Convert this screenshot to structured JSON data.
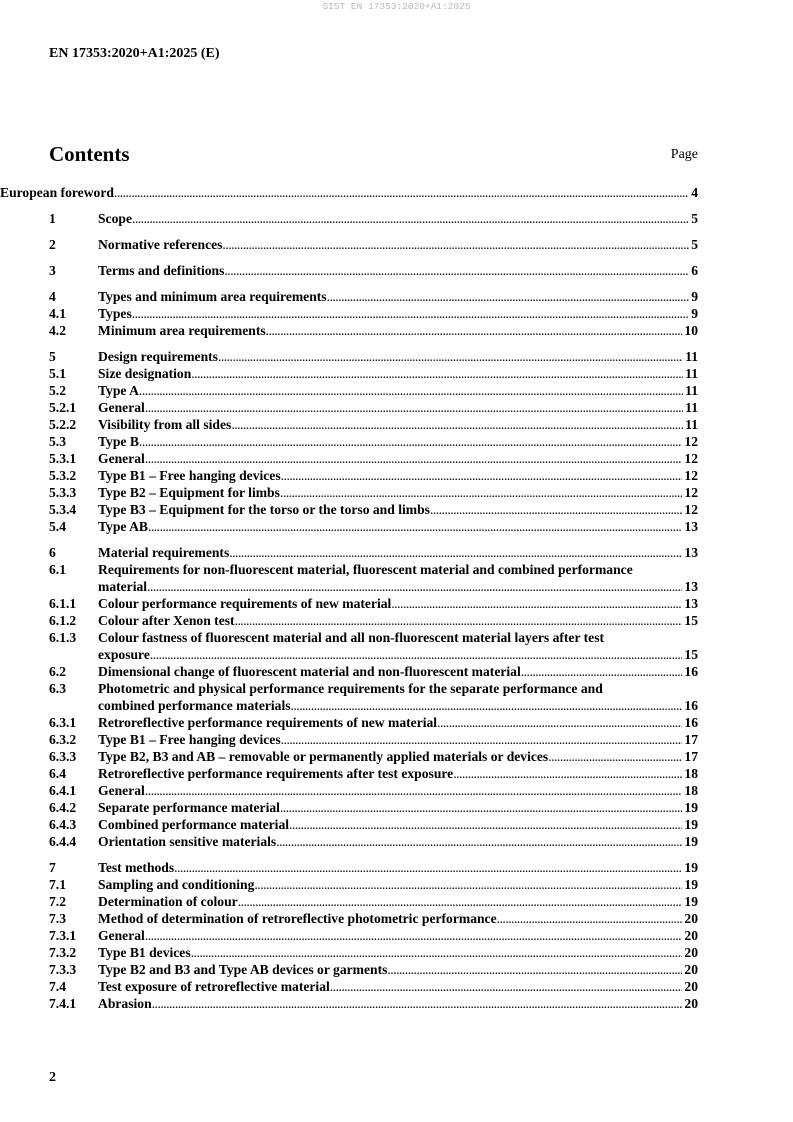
{
  "watermark": "SIST EN 17353:2020+A1:2025",
  "header": "EN 17353:2020+A1:2025 (E)",
  "contents_title": "Contents",
  "page_label": "Page",
  "entries": [
    {
      "num": "",
      "title": "European foreword",
      "page": "4",
      "gap": false
    },
    {
      "num": "1",
      "title": "Scope",
      "page": "5",
      "gap": true
    },
    {
      "num": "2",
      "title": "Normative references",
      "page": "5",
      "gap": true
    },
    {
      "num": "3",
      "title": "Terms and definitions",
      "page": "6",
      "gap": true
    },
    {
      "num": "4",
      "title": "Types and minimum area requirements",
      "page": "9",
      "gap": true
    },
    {
      "num": "4.1",
      "title": "Types",
      "page": "9",
      "gap": false
    },
    {
      "num": "4.2",
      "title": "Minimum area requirements",
      "page": "10",
      "gap": false
    },
    {
      "num": "5",
      "title": "Design requirements",
      "page": "11",
      "gap": true
    },
    {
      "num": "5.1",
      "title": "Size designation",
      "page": "11",
      "gap": false
    },
    {
      "num": "5.2",
      "title": "Type A",
      "page": "11",
      "gap": false
    },
    {
      "num": "5.2.1",
      "title": "General",
      "page": "11",
      "gap": false
    },
    {
      "num": "5.2.2",
      "title": "Visibility from all sides",
      "page": "11",
      "gap": false
    },
    {
      "num": "5.3",
      "title": "Type B",
      "page": "12",
      "gap": false
    },
    {
      "num": "5.3.1",
      "title": "General",
      "page": "12",
      "gap": false
    },
    {
      "num": "5.3.2",
      "title": "Type B1 – Free hanging devices",
      "page": "12",
      "gap": false
    },
    {
      "num": "5.3.3",
      "title": "Type B2 – Equipment for limbs",
      "page": "12",
      "gap": false
    },
    {
      "num": "5.3.4",
      "title": "Type B3 – Equipment for the torso or the torso and limbs",
      "page": "12",
      "gap": false
    },
    {
      "num": "5.4",
      "title": "Type AB",
      "page": "13",
      "gap": false
    },
    {
      "num": "6",
      "title": "Material requirements",
      "page": "13",
      "gap": true
    },
    {
      "num": "6.1",
      "title": "Requirements for non-fluorescent material, fluorescent material and combined performance material",
      "page": "13",
      "gap": false
    },
    {
      "num": "6.1.1",
      "title": "Colour performance requirements of new material",
      "page": "13",
      "gap": false
    },
    {
      "num": "6.1.2",
      "title": "Colour after Xenon test",
      "page": "15",
      "gap": false
    },
    {
      "num": "6.1.3",
      "title": "Colour fastness of fluorescent material and all non-fluorescent material layers after test exposure",
      "page": "15",
      "gap": false
    },
    {
      "num": "6.2",
      "title": "Dimensional change of fluorescent material and non-fluorescent material",
      "page": "16",
      "gap": false
    },
    {
      "num": "6.3",
      "title": "Photometric and physical performance requirements for the separate performance and combined performance materials",
      "page": "16",
      "gap": false
    },
    {
      "num": "6.3.1",
      "title": "Retroreflective performance requirements of new material",
      "page": "16",
      "gap": false
    },
    {
      "num": "6.3.2",
      "title": "Type B1 – Free hanging devices",
      "page": "17",
      "gap": false
    },
    {
      "num": "6.3.3",
      "title": "Type B2, B3 and AB – removable or permanently applied materials or devices",
      "page": "17",
      "gap": false
    },
    {
      "num": "6.4",
      "title": "Retroreflective performance requirements after test exposure",
      "page": "18",
      "gap": false
    },
    {
      "num": "6.4.1",
      "title": "General",
      "page": "18",
      "gap": false
    },
    {
      "num": "6.4.2",
      "title": "Separate performance material",
      "page": "19",
      "gap": false
    },
    {
      "num": "6.4.3",
      "title": "Combined performance material",
      "page": "19",
      "gap": false
    },
    {
      "num": "6.4.4",
      "title": "Orientation sensitive materials",
      "page": "19",
      "gap": false
    },
    {
      "num": "7",
      "title": "Test methods",
      "page": "19",
      "gap": true
    },
    {
      "num": "7.1",
      "title": "Sampling and conditioning",
      "page": "19",
      "gap": false
    },
    {
      "num": "7.2",
      "title": "Determination of colour",
      "page": "19",
      "gap": false
    },
    {
      "num": "7.3",
      "title": "Method of determination of retroreflective photometric performance",
      "page": "20",
      "gap": false
    },
    {
      "num": "7.3.1",
      "title": "General",
      "page": "20",
      "gap": false
    },
    {
      "num": "7.3.2",
      "title": "Type B1 devices",
      "page": "20",
      "gap": false
    },
    {
      "num": "7.3.3",
      "title": "Type B2 and B3 and Type AB devices or garments",
      "page": "20",
      "gap": false
    },
    {
      "num": "7.4",
      "title": "Test exposure of retroreflective material",
      "page": "20",
      "gap": false
    },
    {
      "num": "7.4.1",
      "title": "Abrasion",
      "page": "20",
      "gap": false
    }
  ],
  "page_number": "2"
}
